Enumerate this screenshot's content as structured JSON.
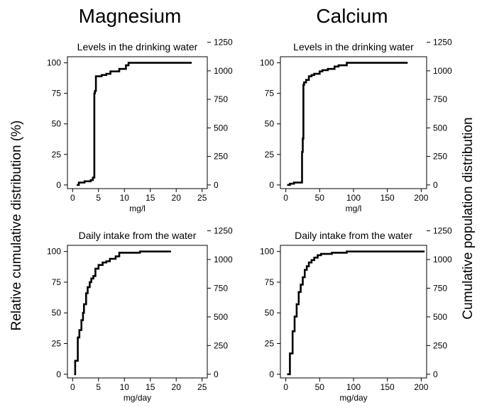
{
  "left_label": "Relative cumulative distribution (%)",
  "right_label": "Cumulative population distribution",
  "columns": [
    "Magnesium",
    "Calcium"
  ],
  "chart_data": [
    {
      "type": "line",
      "step": true,
      "column": "Magnesium",
      "title": "Levels in the drinking water",
      "xlabel": "mg/l",
      "xlim": [
        -1,
        26
      ],
      "xticks": [
        0,
        5,
        10,
        15,
        20,
        25
      ],
      "ylim": [
        -3,
        105
      ],
      "yticks": [
        0,
        25,
        50,
        75,
        100
      ],
      "y2ticks": [
        0,
        250,
        500,
        750,
        1000,
        1250
      ],
      "y2_per_percent": 10.7,
      "series": [
        {
          "x": [
            0.8,
            1.2,
            2.0,
            2.3,
            2.8,
            3.5,
            3.9,
            4.2,
            4.3,
            4.5,
            5.6,
            6.5,
            7.3,
            9.0,
            10.3,
            10.8,
            12.0,
            16.0,
            23.0
          ],
          "y": [
            0,
            2,
            2,
            3,
            3,
            4,
            6,
            75,
            77,
            89,
            90,
            91,
            93,
            95,
            98,
            100,
            100,
            100,
            100
          ]
        }
      ]
    },
    {
      "type": "line",
      "step": true,
      "column": "Calcium",
      "title": "Levels in the drinking water",
      "xlabel": "mg/l",
      "xlim": [
        -8,
        208
      ],
      "xticks": [
        0,
        50,
        100,
        150,
        200
      ],
      "ylim": [
        -3,
        105
      ],
      "yticks": [
        0,
        25,
        50,
        75,
        100
      ],
      "y2ticks": [
        0,
        250,
        500,
        750,
        1000,
        1250
      ],
      "y2_per_percent": 10.7,
      "series": [
        {
          "x": [
            2,
            6,
            12,
            22,
            24,
            25,
            26,
            27,
            30,
            34,
            38,
            42,
            50,
            54,
            62,
            72,
            78,
            90,
            110,
            130,
            150,
            180
          ],
          "y": [
            0,
            1,
            2,
            2,
            27,
            38,
            82,
            84,
            86,
            89,
            90,
            91,
            93,
            94,
            95,
            97,
            98,
            100,
            100,
            100,
            100,
            100
          ]
        }
      ]
    },
    {
      "type": "line",
      "step": true,
      "column": "Magnesium",
      "title": "Daily intake from the water",
      "xlabel": "mg/day",
      "xlim": [
        -1,
        26
      ],
      "xticks": [
        0,
        5,
        10,
        15,
        20,
        25
      ],
      "ylim": [
        -3,
        105
      ],
      "yticks": [
        0,
        25,
        50,
        75,
        100
      ],
      "y2ticks": [
        0,
        250,
        500,
        750,
        1000,
        1250
      ],
      "y2_per_percent": 10.7,
      "series": [
        {
          "x": [
            0.3,
            0.5,
            1.0,
            1.3,
            1.7,
            2.0,
            2.2,
            2.6,
            2.9,
            3.3,
            3.6,
            4.0,
            4.4,
            5.0,
            5.8,
            6.5,
            7.2,
            8.3,
            9.0,
            13.0,
            14.0,
            19.0
          ],
          "y": [
            0,
            11,
            30,
            36,
            44,
            50,
            57,
            66,
            71,
            75,
            78,
            80,
            86,
            89,
            91,
            92,
            94,
            96,
            99,
            100,
            100,
            100
          ]
        }
      ]
    },
    {
      "type": "line",
      "step": true,
      "column": "Calcium",
      "title": "Daily intake from the water",
      "xlabel": "mg/day",
      "xlim": [
        -8,
        208
      ],
      "xticks": [
        0,
        50,
        100,
        150,
        200
      ],
      "ylim": [
        -3,
        105
      ],
      "yticks": [
        0,
        25,
        50,
        75,
        100
      ],
      "y2ticks": [
        0,
        250,
        500,
        750,
        1000,
        1250
      ],
      "y2_per_percent": 10.7,
      "series": [
        {
          "x": [
            2,
            6,
            10,
            13,
            16,
            19,
            22,
            25,
            28,
            31,
            34,
            38,
            42,
            47,
            52,
            60,
            68,
            78,
            90,
            120,
            160,
            205
          ],
          "y": [
            0,
            17,
            35,
            47,
            57,
            67,
            73,
            79,
            85,
            88,
            91,
            93,
            95,
            97,
            98,
            98,
            99,
            99,
            100,
            100,
            100,
            100
          ]
        }
      ]
    }
  ]
}
